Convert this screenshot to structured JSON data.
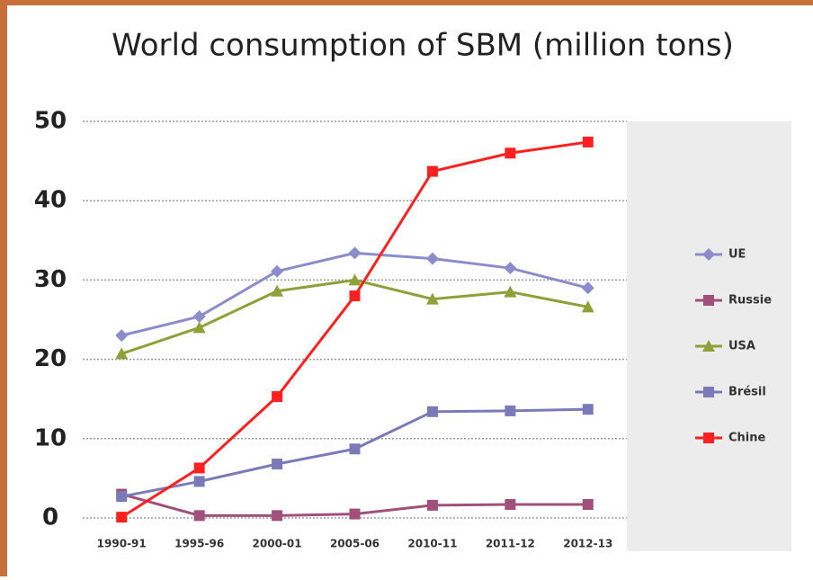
{
  "chart_data": {
    "type": "line",
    "title": "World consumption of SBM (million tons)",
    "categories": [
      "1990-91",
      "1995-96",
      "2000-01",
      "2005-06",
      "2010-11",
      "2011-12",
      "2012-13"
    ],
    "series": [
      {
        "name": "UE",
        "color": "#8c8ccc",
        "marker": "diamond",
        "values": [
          23.0,
          25.4,
          31.1,
          33.4,
          32.7,
          31.5,
          29.0
        ]
      },
      {
        "name": "Russie",
        "color": "#a0507a",
        "marker": "square",
        "values": [
          3.0,
          0.3,
          0.3,
          0.5,
          1.6,
          1.7,
          1.7
        ]
      },
      {
        "name": "USA",
        "color": "#8fa03a",
        "marker": "triangle",
        "values": [
          20.7,
          24.0,
          28.6,
          30.0,
          27.6,
          28.5,
          26.6
        ]
      },
      {
        "name": "Brésil",
        "color": "#7a7ab8",
        "marker": "square",
        "values": [
          2.7,
          4.6,
          6.8,
          8.7,
          13.4,
          13.5,
          13.7
        ]
      },
      {
        "name": "Chine",
        "color": "#ff2020",
        "marker": "square",
        "values": [
          0.1,
          6.3,
          15.3,
          28.0,
          43.7,
          46.0,
          47.4
        ]
      }
    ],
    "ylim": [
      0,
      50
    ],
    "yticks": [
      0,
      10,
      20,
      30,
      40,
      50
    ],
    "grid": true,
    "legend": "right"
  }
}
